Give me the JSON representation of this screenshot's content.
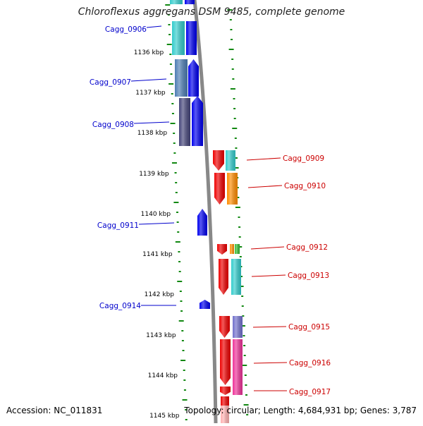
{
  "title": "Chloroflexus aggregans DSM 9485, complete genome",
  "footer": {
    "accession": "Accession: NC_011831",
    "topology": "Topology: circular; Length: 4,684,931 bp; Genes: 3,787"
  },
  "colors": {
    "left_label": "#0000cc",
    "right_label": "#cc0000",
    "tick": "#118811",
    "backbone": "#888888",
    "forward_gene": "#0000ee",
    "reverse_gene": "#ee0000",
    "cyan": "#33cccc",
    "steelblue": "#4d7db3",
    "darkslate": "#45457a",
    "orange": "#ff8c00",
    "green": "#33bb33",
    "slateblue": "#7070cc",
    "magenta": "#ee3399"
  },
  "kbp_labels": [
    "1136 kbp",
    "1137 kbp",
    "1138 kbp",
    "1139 kbp",
    "1140 kbp",
    "1141 kbp",
    "1142 kbp",
    "1143 kbp",
    "1144 kbp",
    "1145 kbp"
  ],
  "gene_labels": [
    {
      "text": "Cagg_0906",
      "side": "left"
    },
    {
      "text": "Cagg_0907",
      "side": "left"
    },
    {
      "text": "Cagg_0908",
      "side": "left"
    },
    {
      "text": "Cagg_0909",
      "side": "right"
    },
    {
      "text": "Cagg_0910",
      "side": "right"
    },
    {
      "text": "Cagg_0911",
      "side": "left"
    },
    {
      "text": "Cagg_0912",
      "side": "right"
    },
    {
      "text": "Cagg_0913",
      "side": "right"
    },
    {
      "text": "Cagg_0914",
      "side": "left"
    },
    {
      "text": "Cagg_0915",
      "side": "right"
    },
    {
      "text": "Cagg_0916",
      "side": "right"
    },
    {
      "text": "Cagg_0917",
      "side": "right"
    }
  ]
}
